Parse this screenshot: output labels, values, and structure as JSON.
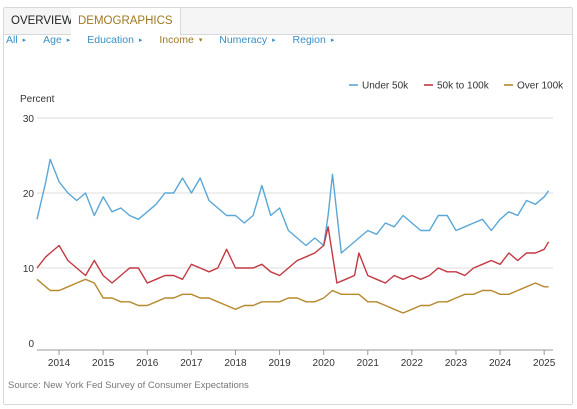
{
  "tabs": [
    {
      "label": "OVERVIEW"
    },
    {
      "label": "DEMOGRAPHICS"
    }
  ],
  "filters": [
    {
      "label": "All"
    },
    {
      "label": "Age"
    },
    {
      "label": "Education"
    },
    {
      "label": "Income"
    },
    {
      "label": "Numeracy"
    },
    {
      "label": "Region"
    }
  ],
  "active_filter": "Income",
  "source": "Source: New York Fed Survey of Consumer Expectations",
  "chart_data": {
    "type": "line",
    "ylabel": "Percent",
    "ylim": [
      0,
      30
    ],
    "yticks": [
      0,
      10,
      20,
      30
    ],
    "xlim": [
      2013.5,
      2025.2
    ],
    "xticks": [
      "2014",
      "2015",
      "2016",
      "2017",
      "2018",
      "2019",
      "2020",
      "2021",
      "2022",
      "2023",
      "2024",
      "2025"
    ],
    "grid": "horizontal",
    "legend_position": "top-right",
    "series": [
      {
        "name": "Under 50k",
        "color": "#5aa7d6",
        "values": [
          [
            2013.5,
            16.5
          ],
          [
            2013.7,
            21.5
          ],
          [
            2013.8,
            24.5
          ],
          [
            2014.0,
            21.5
          ],
          [
            2014.2,
            20
          ],
          [
            2014.4,
            19
          ],
          [
            2014.6,
            20
          ],
          [
            2014.8,
            17
          ],
          [
            2015.0,
            19.5
          ],
          [
            2015.2,
            17.5
          ],
          [
            2015.4,
            18
          ],
          [
            2015.6,
            17
          ],
          [
            2015.8,
            16.5
          ],
          [
            2016.0,
            17.5
          ],
          [
            2016.2,
            18.5
          ],
          [
            2016.4,
            20
          ],
          [
            2016.6,
            20
          ],
          [
            2016.8,
            22
          ],
          [
            2017.0,
            20
          ],
          [
            2017.2,
            22
          ],
          [
            2017.4,
            19
          ],
          [
            2017.6,
            18
          ],
          [
            2017.8,
            17
          ],
          [
            2018.0,
            17
          ],
          [
            2018.2,
            16
          ],
          [
            2018.4,
            17
          ],
          [
            2018.6,
            21
          ],
          [
            2018.8,
            17
          ],
          [
            2019.0,
            18
          ],
          [
            2019.2,
            15
          ],
          [
            2019.4,
            14
          ],
          [
            2019.6,
            13
          ],
          [
            2019.8,
            14
          ],
          [
            2020.0,
            13
          ],
          [
            2020.1,
            17
          ],
          [
            2020.2,
            22.5
          ],
          [
            2020.4,
            12
          ],
          [
            2020.6,
            13
          ],
          [
            2020.8,
            14
          ],
          [
            2021.0,
            15
          ],
          [
            2021.2,
            14.5
          ],
          [
            2021.4,
            16
          ],
          [
            2021.6,
            15.5
          ],
          [
            2021.8,
            17
          ],
          [
            2022.0,
            16
          ],
          [
            2022.2,
            15
          ],
          [
            2022.4,
            15
          ],
          [
            2022.6,
            17
          ],
          [
            2022.8,
            17
          ],
          [
            2023.0,
            15
          ],
          [
            2023.2,
            15.5
          ],
          [
            2023.4,
            16
          ],
          [
            2023.6,
            16.5
          ],
          [
            2023.8,
            15
          ],
          [
            2024.0,
            16.5
          ],
          [
            2024.2,
            17.5
          ],
          [
            2024.4,
            17
          ],
          [
            2024.6,
            19
          ],
          [
            2024.8,
            18.5
          ],
          [
            2025.0,
            19.5
          ],
          [
            2025.1,
            20.3
          ]
        ]
      },
      {
        "name": "50k to 100k",
        "color": "#c23842",
        "values": [
          [
            2013.5,
            10
          ],
          [
            2013.7,
            11.5
          ],
          [
            2013.8,
            12
          ],
          [
            2014.0,
            13
          ],
          [
            2014.2,
            11
          ],
          [
            2014.4,
            10
          ],
          [
            2014.6,
            9
          ],
          [
            2014.8,
            11
          ],
          [
            2015.0,
            9
          ],
          [
            2015.2,
            8
          ],
          [
            2015.4,
            9
          ],
          [
            2015.6,
            10
          ],
          [
            2015.8,
            10
          ],
          [
            2016.0,
            8
          ],
          [
            2016.2,
            8.5
          ],
          [
            2016.4,
            9
          ],
          [
            2016.6,
            9
          ],
          [
            2016.8,
            8.5
          ],
          [
            2017.0,
            10.5
          ],
          [
            2017.2,
            10
          ],
          [
            2017.4,
            9.5
          ],
          [
            2017.6,
            10
          ],
          [
            2017.8,
            12.5
          ],
          [
            2018.0,
            10
          ],
          [
            2018.2,
            10
          ],
          [
            2018.4,
            10
          ],
          [
            2018.6,
            10.5
          ],
          [
            2018.8,
            9.5
          ],
          [
            2019.0,
            9
          ],
          [
            2019.2,
            10
          ],
          [
            2019.4,
            11
          ],
          [
            2019.6,
            11.5
          ],
          [
            2019.8,
            12
          ],
          [
            2020.0,
            13
          ],
          [
            2020.1,
            15.5
          ],
          [
            2020.3,
            8
          ],
          [
            2020.5,
            8.5
          ],
          [
            2020.7,
            9
          ],
          [
            2020.8,
            12
          ],
          [
            2021.0,
            9
          ],
          [
            2021.2,
            8.5
          ],
          [
            2021.4,
            8
          ],
          [
            2021.6,
            9
          ],
          [
            2021.8,
            8.5
          ],
          [
            2022.0,
            9
          ],
          [
            2022.2,
            8.5
          ],
          [
            2022.4,
            9
          ],
          [
            2022.6,
            10
          ],
          [
            2022.8,
            9.5
          ],
          [
            2023.0,
            9.5
          ],
          [
            2023.2,
            9
          ],
          [
            2023.4,
            10
          ],
          [
            2023.6,
            10.5
          ],
          [
            2023.8,
            11
          ],
          [
            2024.0,
            10.5
          ],
          [
            2024.2,
            12
          ],
          [
            2024.4,
            11
          ],
          [
            2024.6,
            12
          ],
          [
            2024.8,
            12
          ],
          [
            2025.0,
            12.5
          ],
          [
            2025.1,
            13.5
          ]
        ]
      },
      {
        "name": "Over 100k",
        "color": "#b5892c",
        "values": [
          [
            2013.5,
            8.5
          ],
          [
            2013.7,
            7.5
          ],
          [
            2013.8,
            7
          ],
          [
            2014.0,
            7
          ],
          [
            2014.2,
            7.5
          ],
          [
            2014.4,
            8
          ],
          [
            2014.6,
            8.5
          ],
          [
            2014.8,
            8
          ],
          [
            2015.0,
            6
          ],
          [
            2015.2,
            6
          ],
          [
            2015.4,
            5.5
          ],
          [
            2015.6,
            5.5
          ],
          [
            2015.8,
            5
          ],
          [
            2016.0,
            5
          ],
          [
            2016.2,
            5.5
          ],
          [
            2016.4,
            6
          ],
          [
            2016.6,
            6
          ],
          [
            2016.8,
            6.5
          ],
          [
            2017.0,
            6.5
          ],
          [
            2017.2,
            6
          ],
          [
            2017.4,
            6
          ],
          [
            2017.6,
            5.5
          ],
          [
            2017.8,
            5
          ],
          [
            2018.0,
            4.5
          ],
          [
            2018.2,
            5
          ],
          [
            2018.4,
            5
          ],
          [
            2018.6,
            5.5
          ],
          [
            2018.8,
            5.5
          ],
          [
            2019.0,
            5.5
          ],
          [
            2019.2,
            6
          ],
          [
            2019.4,
            6
          ],
          [
            2019.6,
            5.5
          ],
          [
            2019.8,
            5.5
          ],
          [
            2020.0,
            6
          ],
          [
            2020.2,
            7
          ],
          [
            2020.4,
            6.5
          ],
          [
            2020.6,
            6.5
          ],
          [
            2020.8,
            6.5
          ],
          [
            2021.0,
            5.5
          ],
          [
            2021.2,
            5.5
          ],
          [
            2021.4,
            5
          ],
          [
            2021.6,
            4.5
          ],
          [
            2021.8,
            4
          ],
          [
            2022.0,
            4.5
          ],
          [
            2022.2,
            5
          ],
          [
            2022.4,
            5
          ],
          [
            2022.6,
            5.5
          ],
          [
            2022.8,
            5.5
          ],
          [
            2023.0,
            6
          ],
          [
            2023.2,
            6.5
          ],
          [
            2023.4,
            6.5
          ],
          [
            2023.6,
            7
          ],
          [
            2023.8,
            7
          ],
          [
            2024.0,
            6.5
          ],
          [
            2024.2,
            6.5
          ],
          [
            2024.4,
            7
          ],
          [
            2024.6,
            7.5
          ],
          [
            2024.8,
            8
          ],
          [
            2025.0,
            7.5
          ],
          [
            2025.1,
            7.5
          ]
        ]
      }
    ]
  }
}
